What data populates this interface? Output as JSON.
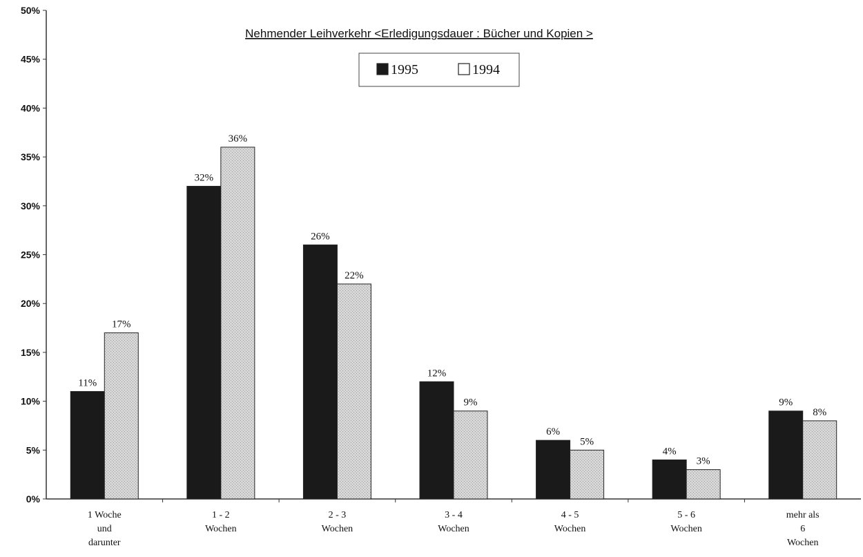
{
  "chart_data": {
    "type": "bar",
    "title": "Nehmender Leihverkehr  <Erledigungsdauer : Bücher und Kopien >",
    "categories": [
      [
        "1 Woche",
        "und",
        "darunter"
      ],
      [
        "1  -  2",
        "Wochen"
      ],
      [
        "2  -  3",
        "Wochen"
      ],
      [
        "3  -  4",
        "Wochen"
      ],
      [
        "4  -  5",
        "Wochen"
      ],
      [
        "5  -  6",
        "Wochen"
      ],
      [
        "mehr als",
        "6",
        "Wochen"
      ]
    ],
    "series": [
      {
        "name": "1995",
        "values": [
          11,
          32,
          26,
          12,
          6,
          4,
          9
        ],
        "color": "#1a1a1a"
      },
      {
        "name": "1994",
        "values": [
          17,
          36,
          22,
          9,
          5,
          3,
          8
        ],
        "color": "#cfcfcf"
      }
    ],
    "data_labels": [
      [
        "11%",
        "32%",
        "26%",
        "12%",
        "6%",
        "4%",
        "9%"
      ],
      [
        "17%",
        "36%",
        "22%",
        "9%",
        "5%",
        "3%",
        "8%"
      ]
    ],
    "y_ticks": [
      "0%",
      "5%",
      "10%",
      "15%",
      "20%",
      "25%",
      "30%",
      "35%",
      "40%",
      "45%",
      "50%"
    ],
    "ylim": [
      0,
      50
    ],
    "xlabel": "",
    "ylabel": "",
    "grid": false,
    "legend_position": "top-center"
  }
}
